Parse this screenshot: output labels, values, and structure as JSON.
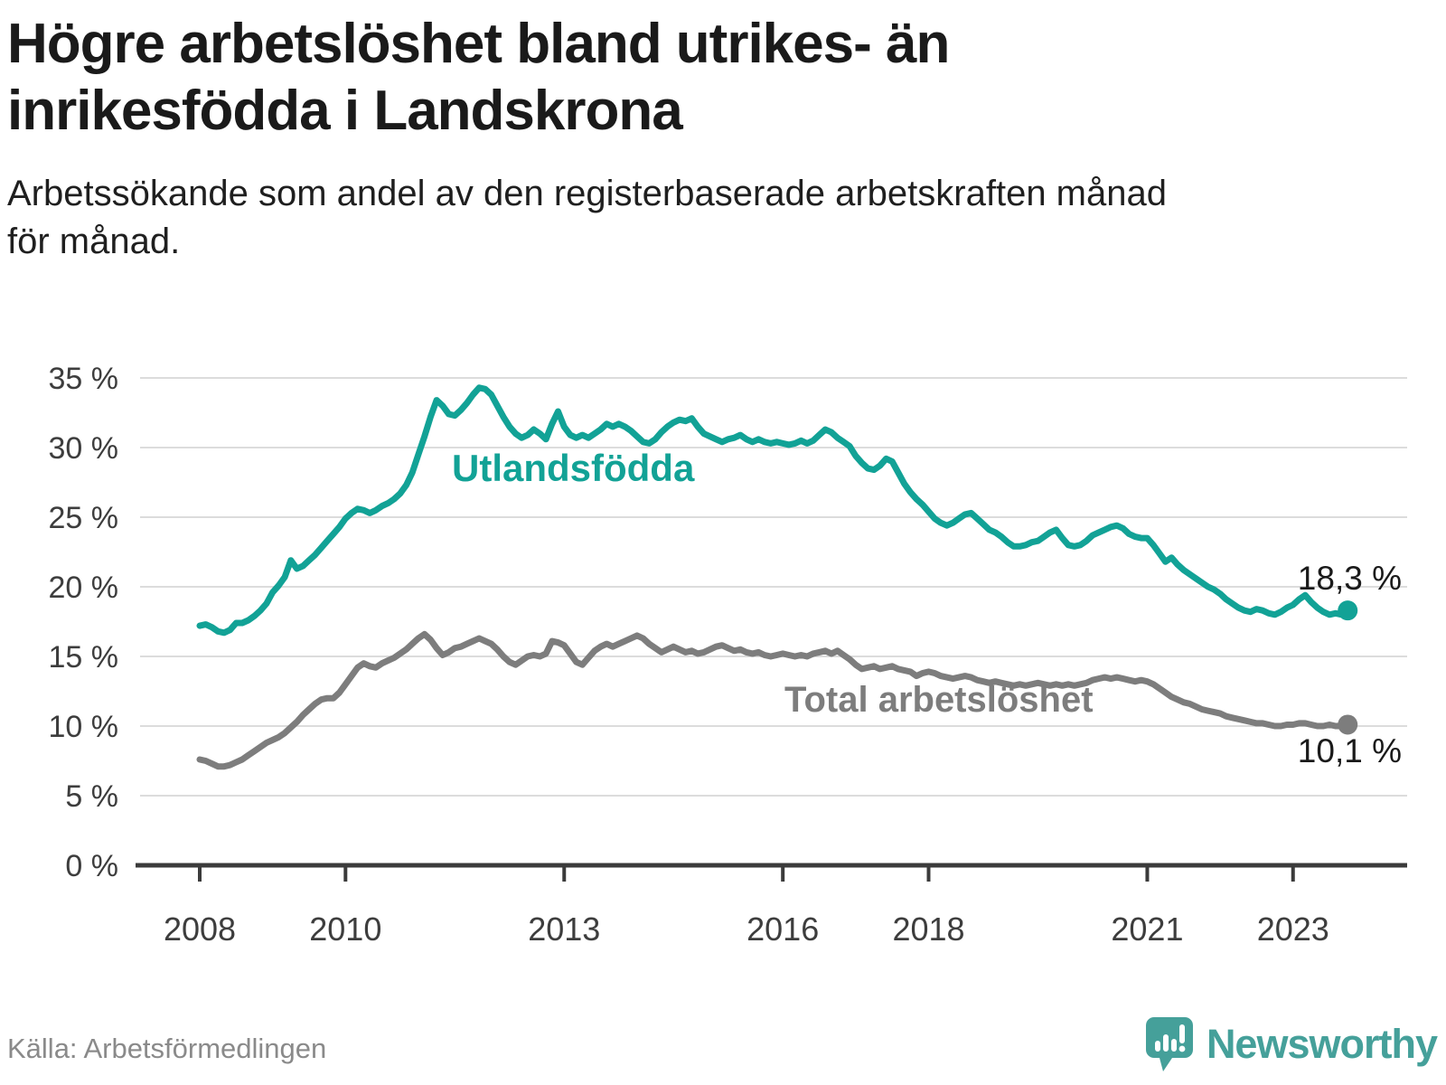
{
  "title_lines": [
    "Högre arbetslöshet bland utrikes- än",
    "inrikesfödda i Landskrona"
  ],
  "subtitle_lines": [
    "Arbetssökande som andel av den registerbaserade arbetskraften månad",
    "för månad."
  ],
  "source": "Källa: Arbetsförmedlingen",
  "logo": {
    "text": "Newsworthy",
    "icon": "newsworthy-speech-bubble-chart-icon"
  },
  "colors": {
    "foreign_born_line": "#12a296",
    "total_line": "#7d7d7d",
    "title_text": "#1a1a1a",
    "axis_text": "#3d3d3d",
    "axis_line": "#3b3b3b",
    "gridline": "#dcdcdc",
    "value_label": "#1a1a1a",
    "source_text": "#8a8a8a",
    "logo_teal": "#45a09a"
  },
  "chart_data": {
    "type": "line",
    "unit": "%",
    "grid": "horizontal",
    "legend_position": "inline-labels",
    "x_start": {
      "year": 2008,
      "month": 1
    },
    "x_end": {
      "year": 2023,
      "month": 10
    },
    "x_tick_years": [
      2008,
      2010,
      2013,
      2016,
      2018,
      2021,
      2023
    ],
    "y_ticks": [
      0,
      5,
      10,
      15,
      20,
      25,
      30,
      35
    ],
    "y_tick_suffix": " %",
    "ylim": [
      0,
      36.5
    ],
    "series": [
      {
        "name": "Utlandsfödda",
        "color": "#12a296",
        "end_label": "18,3 %",
        "last_value": 18.3,
        "values": [
          17.2,
          17.3,
          17.1,
          16.8,
          16.7,
          16.9,
          17.4,
          17.4,
          17.6,
          17.9,
          18.3,
          18.8,
          19.6,
          20.1,
          20.7,
          21.9,
          21.3,
          21.5,
          21.9,
          22.3,
          22.8,
          23.3,
          23.8,
          24.3,
          24.9,
          25.3,
          25.6,
          25.5,
          25.3,
          25.5,
          25.8,
          26.0,
          26.3,
          26.7,
          27.3,
          28.2,
          29.5,
          30.8,
          32.2,
          33.4,
          33.0,
          32.4,
          32.3,
          32.7,
          33.2,
          33.8,
          34.3,
          34.2,
          33.8,
          33.0,
          32.2,
          31.5,
          31.0,
          30.7,
          30.9,
          31.3,
          31.0,
          30.6,
          31.7,
          32.6,
          31.5,
          30.9,
          30.7,
          30.9,
          30.7,
          31.0,
          31.3,
          31.7,
          31.5,
          31.7,
          31.5,
          31.2,
          30.8,
          30.4,
          30.3,
          30.6,
          31.1,
          31.5,
          31.8,
          32.0,
          31.9,
          32.1,
          31.5,
          31.0,
          30.8,
          30.6,
          30.4,
          30.6,
          30.7,
          30.9,
          30.6,
          30.4,
          30.6,
          30.4,
          30.3,
          30.4,
          30.3,
          30.2,
          30.3,
          30.5,
          30.3,
          30.5,
          30.9,
          31.3,
          31.1,
          30.7,
          30.4,
          30.1,
          29.4,
          28.9,
          28.5,
          28.4,
          28.7,
          29.2,
          29.0,
          28.2,
          27.4,
          26.8,
          26.3,
          25.9,
          25.4,
          24.9,
          24.6,
          24.4,
          24.6,
          24.9,
          25.2,
          25.3,
          24.9,
          24.5,
          24.1,
          23.9,
          23.6,
          23.2,
          22.9,
          22.9,
          23.0,
          23.2,
          23.3,
          23.6,
          23.9,
          24.1,
          23.5,
          23.0,
          22.9,
          23.0,
          23.3,
          23.7,
          23.9,
          24.1,
          24.3,
          24.4,
          24.2,
          23.8,
          23.6,
          23.5,
          23.5,
          23.0,
          22.4,
          21.8,
          22.1,
          21.6,
          21.2,
          20.9,
          20.6,
          20.3,
          20.0,
          19.8,
          19.5,
          19.1,
          18.8,
          18.5,
          18.3,
          18.2,
          18.4,
          18.3,
          18.1,
          18.0,
          18.2,
          18.5,
          18.7,
          19.1,
          19.4,
          18.9,
          18.5,
          18.2,
          18.0,
          18.1,
          18.0,
          18.3
        ]
      },
      {
        "name": "Total arbetslöshet",
        "color": "#7d7d7d",
        "end_label": "10,1 %",
        "last_value": 10.1,
        "values": [
          7.6,
          7.5,
          7.3,
          7.1,
          7.1,
          7.2,
          7.4,
          7.6,
          7.9,
          8.2,
          8.5,
          8.8,
          9.0,
          9.2,
          9.5,
          9.9,
          10.3,
          10.8,
          11.2,
          11.6,
          11.9,
          12.0,
          12.0,
          12.4,
          13.0,
          13.6,
          14.2,
          14.5,
          14.3,
          14.2,
          14.5,
          14.7,
          14.9,
          15.2,
          15.5,
          15.9,
          16.3,
          16.6,
          16.2,
          15.6,
          15.1,
          15.3,
          15.6,
          15.7,
          15.9,
          16.1,
          16.3,
          16.1,
          15.9,
          15.5,
          15.0,
          14.6,
          14.4,
          14.7,
          15.0,
          15.1,
          15.0,
          15.2,
          16.1,
          16.0,
          15.8,
          15.2,
          14.6,
          14.4,
          14.9,
          15.4,
          15.7,
          15.9,
          15.7,
          15.9,
          16.1,
          16.3,
          16.5,
          16.3,
          15.9,
          15.6,
          15.3,
          15.5,
          15.7,
          15.5,
          15.3,
          15.4,
          15.2,
          15.3,
          15.5,
          15.7,
          15.8,
          15.6,
          15.4,
          15.5,
          15.3,
          15.2,
          15.3,
          15.1,
          15.0,
          15.1,
          15.2,
          15.1,
          15.0,
          15.1,
          15.0,
          15.2,
          15.3,
          15.4,
          15.2,
          15.4,
          15.1,
          14.8,
          14.4,
          14.1,
          14.2,
          14.3,
          14.1,
          14.2,
          14.3,
          14.1,
          14.0,
          13.9,
          13.6,
          13.8,
          13.9,
          13.8,
          13.6,
          13.5,
          13.4,
          13.5,
          13.6,
          13.5,
          13.3,
          13.2,
          13.1,
          13.2,
          13.1,
          13.0,
          12.9,
          13.0,
          12.9,
          13.0,
          13.1,
          13.0,
          12.9,
          13.0,
          12.9,
          13.0,
          12.9,
          13.0,
          13.1,
          13.3,
          13.4,
          13.5,
          13.4,
          13.5,
          13.4,
          13.3,
          13.2,
          13.3,
          13.2,
          13.0,
          12.7,
          12.4,
          12.1,
          11.9,
          11.7,
          11.6,
          11.4,
          11.2,
          11.1,
          11.0,
          10.9,
          10.7,
          10.6,
          10.5,
          10.4,
          10.3,
          10.2,
          10.2,
          10.1,
          10.0,
          10.0,
          10.1,
          10.1,
          10.2,
          10.2,
          10.1,
          10.0,
          10.0,
          10.1,
          10.0,
          10.0,
          10.1
        ]
      }
    ]
  }
}
